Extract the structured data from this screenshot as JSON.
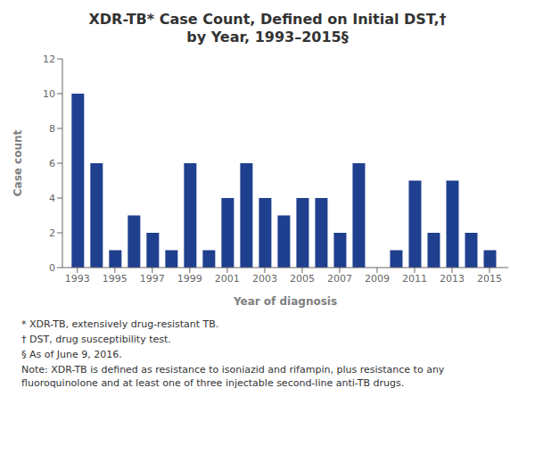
{
  "chart_data": {
    "type": "bar",
    "title": "XDR-TB* Case Count, Defined on Initial DST,†",
    "subtitle": "by Year, 1993–2015§",
    "x": [
      1993,
      1994,
      1995,
      1996,
      1997,
      1998,
      1999,
      2000,
      2001,
      2002,
      2003,
      2004,
      2005,
      2006,
      2007,
      2008,
      2009,
      2010,
      2011,
      2012,
      2013,
      2014,
      2015
    ],
    "values": [
      10,
      6,
      1,
      3,
      2,
      1,
      6,
      1,
      4,
      6,
      4,
      3,
      4,
      4,
      2,
      6,
      0,
      1,
      5,
      2,
      5,
      2,
      1
    ],
    "color": "#1F3F8F",
    "xlabel": "Year of diagnosis",
    "ylabel": "Case count",
    "xlim": [
      1992.2,
      2016.0
    ],
    "xticks": [
      1993,
      1995,
      1997,
      1999,
      2001,
      2003,
      2005,
      2007,
      2009,
      2011,
      2013,
      2015
    ],
    "ylim": [
      0,
      12
    ],
    "yticks": [
      0,
      2,
      4,
      6,
      8,
      10,
      12
    ],
    "grid": false,
    "annotations": [
      "* XDR-TB, extensively drug-resistant TB.",
      "† DST, drug susceptibility test.",
      "§ As of June 9, 2016.",
      "Note: XDR-TB is defined as resistance to isoniazid and rifampin, plus resistance to any fluoroquinolone and at least one of three injectable second-line anti-TB drugs."
    ]
  }
}
